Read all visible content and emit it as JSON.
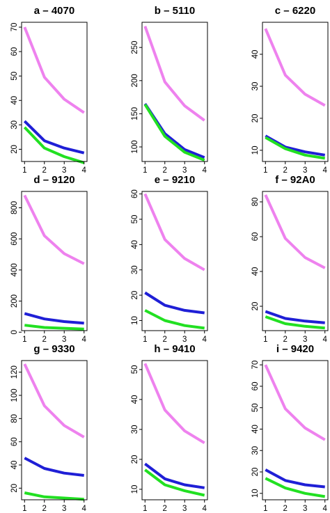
{
  "chart_data": [
    {
      "type": "line",
      "title": "a – 4070",
      "x": [
        1,
        2,
        3,
        4
      ],
      "ylim": [
        15,
        72
      ],
      "yticks": [
        20,
        30,
        40,
        50,
        60,
        70
      ],
      "series": [
        {
          "color": "#ee82ee",
          "values": [
            70,
            49.5,
            40.5,
            35
          ]
        },
        {
          "color": "#1f1fd6",
          "values": [
            31.5,
            23.5,
            20.5,
            18.5
          ]
        },
        {
          "color": "#22e022",
          "values": [
            29,
            20.5,
            17,
            14.5
          ]
        }
      ]
    },
    {
      "type": "line",
      "title": "b – 5110",
      "x": [
        1,
        2,
        3,
        4
      ],
      "ylim": [
        78,
        288
      ],
      "yticks": [
        100,
        150,
        200,
        250
      ],
      "series": [
        {
          "color": "#ee82ee",
          "values": [
            282,
            198,
            162,
            140
          ]
        },
        {
          "color": "#1f1fd6",
          "values": [
            165,
            120,
            96,
            84
          ]
        },
        {
          "color": "#22e022",
          "values": [
            164,
            116,
            92,
            80
          ]
        }
      ]
    },
    {
      "type": "line",
      "title": "c – 6220",
      "x": [
        1,
        2,
        3,
        4
      ],
      "ylim": [
        6.5,
        50
      ],
      "yticks": [
        10,
        20,
        30,
        40
      ],
      "series": [
        {
          "color": "#ee82ee",
          "values": [
            48,
            33.5,
            27.5,
            24
          ]
        },
        {
          "color": "#1f1fd6",
          "values": [
            14.5,
            11,
            9.5,
            8.5
          ]
        },
        {
          "color": "#22e022",
          "values": [
            14,
            10.5,
            8.5,
            7.5
          ]
        }
      ]
    },
    {
      "type": "line",
      "title": "d – 9120",
      "x": [
        1,
        2,
        3,
        4
      ],
      "ylim": [
        10,
        905
      ],
      "yticks": [
        0,
        200,
        400,
        600,
        800
      ],
      "series": [
        {
          "color": "#ee82ee",
          "values": [
            880,
            620,
            505,
            440
          ]
        },
        {
          "color": "#1f1fd6",
          "values": [
            120,
            85,
            68,
            58
          ]
        },
        {
          "color": "#22e022",
          "values": [
            45,
            30,
            25,
            20
          ]
        }
      ]
    },
    {
      "type": "line",
      "title": "e – 9210",
      "x": [
        1,
        2,
        3,
        4
      ],
      "ylim": [
        6,
        61
      ],
      "yticks": [
        10,
        20,
        30,
        40,
        50,
        60
      ],
      "series": [
        {
          "color": "#ee82ee",
          "values": [
            60,
            42,
            34.5,
            30
          ]
        },
        {
          "color": "#1f1fd6",
          "values": [
            21,
            16,
            14,
            13
          ]
        },
        {
          "color": "#22e022",
          "values": [
            14,
            10,
            8,
            7
          ]
        }
      ]
    },
    {
      "type": "line",
      "title": "f – 92A0",
      "x": [
        1,
        2,
        3,
        4
      ],
      "ylim": [
        6,
        86
      ],
      "yticks": [
        20,
        40,
        60,
        80
      ],
      "series": [
        {
          "color": "#ee82ee",
          "values": [
            84,
            59,
            48,
            42
          ]
        },
        {
          "color": "#1f1fd6",
          "values": [
            17,
            13,
            11.5,
            10.5
          ]
        },
        {
          "color": "#22e022",
          "values": [
            14,
            10,
            8.5,
            7.5
          ]
        }
      ]
    },
    {
      "type": "line",
      "title": "g – 9330",
      "x": [
        1,
        2,
        3,
        4
      ],
      "ylim": [
        10,
        130
      ],
      "yticks": [
        20,
        40,
        60,
        80,
        100,
        120
      ],
      "series": [
        {
          "color": "#ee82ee",
          "values": [
            127,
            91,
            74,
            64
          ]
        },
        {
          "color": "#1f1fd6",
          "values": [
            46,
            37,
            33,
            31
          ]
        },
        {
          "color": "#22e022",
          "values": [
            16,
            12.5,
            11.5,
            10.5
          ]
        }
      ]
    },
    {
      "type": "line",
      "title": "h – 9410",
      "x": [
        1,
        2,
        3,
        4
      ],
      "ylim": [
        6.5,
        53
      ],
      "yticks": [
        10,
        20,
        30,
        40,
        50
      ],
      "series": [
        {
          "color": "#ee82ee",
          "values": [
            52,
            36.5,
            29.5,
            25.5
          ]
        },
        {
          "color": "#1f1fd6",
          "values": [
            18.5,
            13.5,
            11.5,
            10.5
          ]
        },
        {
          "color": "#22e022",
          "values": [
            16.5,
            11.5,
            9.5,
            8
          ]
        }
      ]
    },
    {
      "type": "line",
      "title": "i – 9420",
      "x": [
        1,
        2,
        3,
        4
      ],
      "ylim": [
        7,
        72
      ],
      "yticks": [
        10,
        20,
        30,
        40,
        50,
        60,
        70
      ],
      "series": [
        {
          "color": "#ee82ee",
          "values": [
            70,
            49.5,
            40.5,
            35
          ]
        },
        {
          "color": "#1f1fd6",
          "values": [
            21,
            16,
            14,
            13
          ]
        },
        {
          "color": "#22e022",
          "values": [
            17,
            12.5,
            10,
            8.5
          ]
        }
      ]
    }
  ]
}
